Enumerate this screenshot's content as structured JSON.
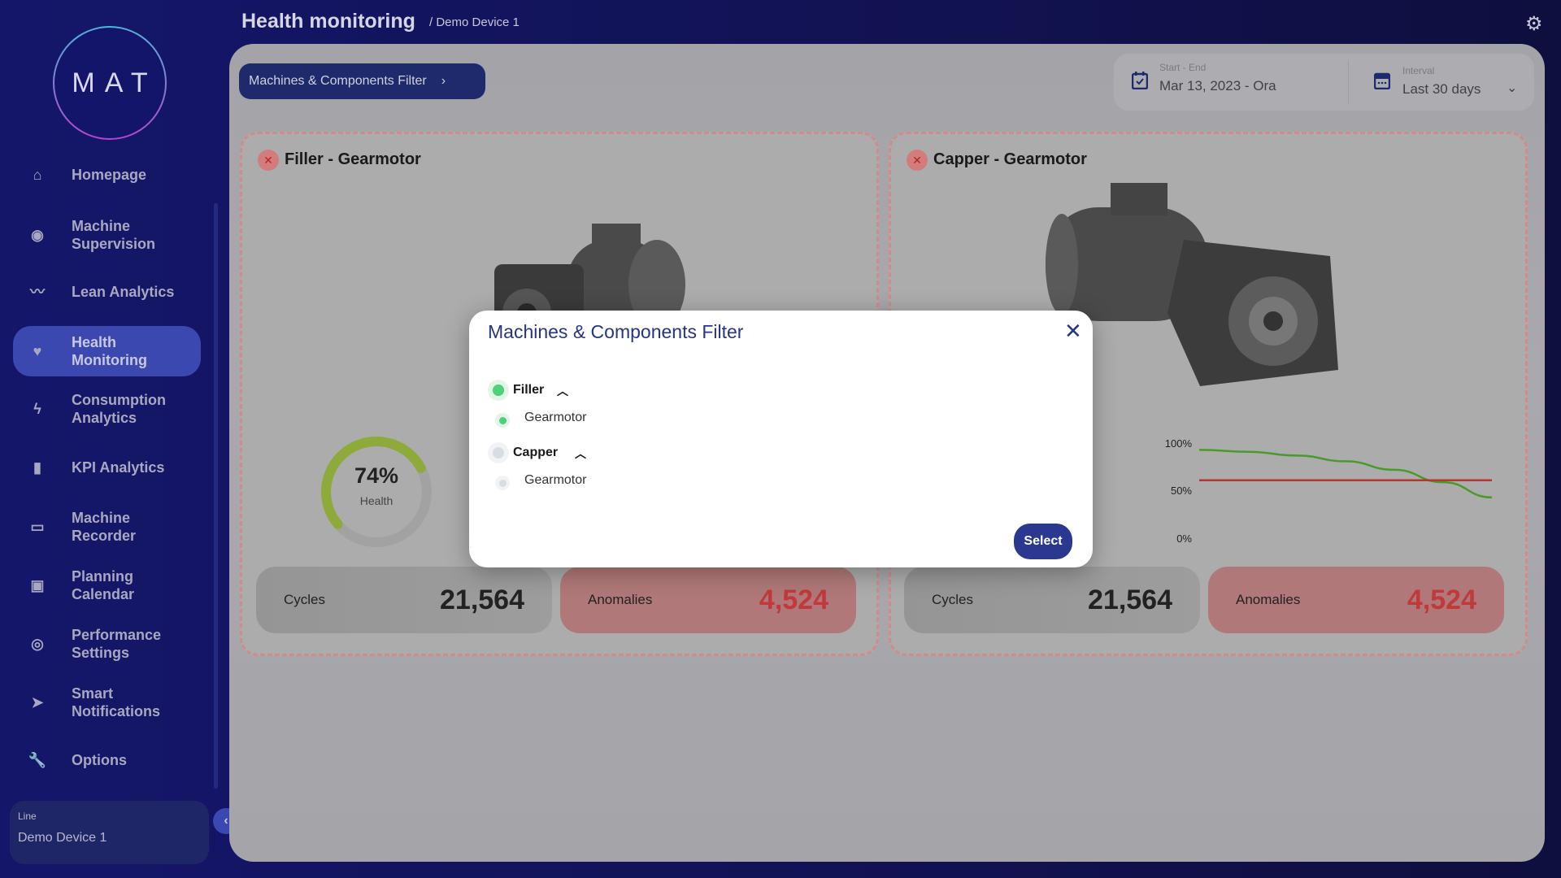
{
  "logo": {
    "text": "MAT"
  },
  "header": {
    "title": "Health monitoring",
    "breadcrumb": "/ Demo Device 1"
  },
  "sidebar": {
    "items": [
      {
        "label": "Homepage",
        "icon": "home-icon"
      },
      {
        "label": "Machine Supervision",
        "icon": "eye-icon"
      },
      {
        "label": "Lean Analytics",
        "icon": "trend-icon"
      },
      {
        "label": "Health Monitoring",
        "icon": "heart-pulse-icon",
        "active": true
      },
      {
        "label": "Consumption Analytics",
        "icon": "bolt-icon"
      },
      {
        "label": "KPI Analytics",
        "icon": "bar-chart-icon"
      },
      {
        "label": "Machine Recorder",
        "icon": "recorder-icon"
      },
      {
        "label": "Planning Calendar",
        "icon": "calendar-icon"
      },
      {
        "label": "Performance Settings",
        "icon": "stopwatch-icon"
      },
      {
        "label": "Smart Notifications",
        "icon": "send-icon"
      },
      {
        "label": "Options",
        "icon": "wrench-icon"
      }
    ],
    "line": {
      "label": "Line",
      "value": "Demo Device 1"
    }
  },
  "toolbar": {
    "filter_label": "Machines & Components Filter",
    "date_label": "Start - End",
    "date_value": "Mar 13, 2023 - Ora",
    "interval_label": "Interval",
    "interval_value": "Last 30 days"
  },
  "cards": [
    {
      "title": "Filler - Gearmotor",
      "health": 74,
      "health_text": "74%",
      "health_label": "Health",
      "cycles_label": "Cycles",
      "cycles": "21,564",
      "anomalies_label": "Anomalies",
      "anomalies": "4,524"
    },
    {
      "title": "Capper - Gearmotor",
      "cycles_label": "Cycles",
      "cycles": "21,564",
      "anomalies_label": "Anomalies",
      "anomalies": "4,524"
    }
  ],
  "chart_data": {
    "type": "line",
    "yticks": [
      "100%",
      "50%",
      "0%"
    ],
    "ylim": [
      0,
      100
    ],
    "series": [
      {
        "color": "#4a9a2a",
        "values": [
          92,
          90,
          86,
          80,
          71,
          58,
          42
        ]
      },
      {
        "color": "#c03030",
        "values": [
          60,
          60,
          60,
          60,
          60,
          60,
          60
        ]
      }
    ]
  },
  "modal": {
    "title": "Machines & Components Filter",
    "groups": [
      {
        "label": "Filler",
        "selected": true,
        "children": [
          {
            "label": "Gearmotor",
            "selected": true
          }
        ]
      },
      {
        "label": "Capper",
        "selected": false,
        "children": [
          {
            "label": "Gearmotor",
            "selected": false
          }
        ]
      }
    ],
    "select_label": "Select"
  },
  "colors": {
    "accent": "#2a3890",
    "selected": "#4cd07a",
    "anomaly": "#c0393b"
  }
}
